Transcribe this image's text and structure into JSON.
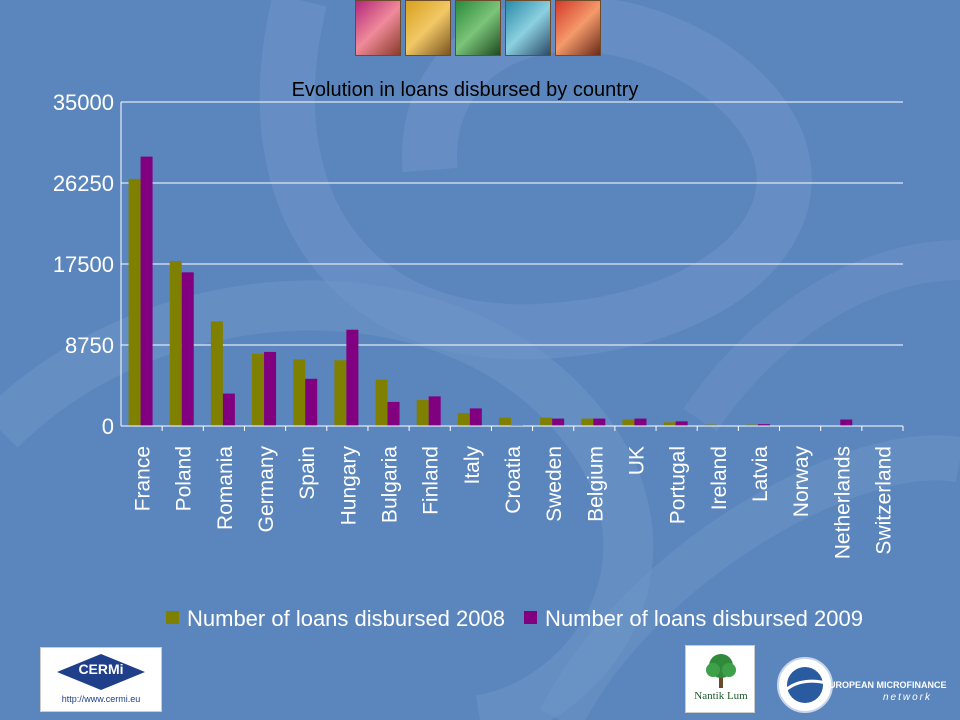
{
  "chart_data": {
    "type": "bar",
    "title": "Evolution in loans disbursed by country",
    "xlabel": "",
    "ylabel": "",
    "ylim": [
      0,
      35000
    ],
    "yticks": [
      "35000",
      "26250",
      "17500",
      "8750",
      "0"
    ],
    "yticks_values": [
      35000,
      26250,
      17500,
      8750,
      0
    ],
    "grid": true,
    "legend_position": "bottom",
    "categories": [
      "France",
      "Poland",
      "Romania",
      "Germany",
      "Spain",
      "Hungary",
      "Bulgaria",
      "Finland",
      "Italy",
      "Croatia",
      "Sweden",
      "Belgium",
      "UK",
      "Portugal",
      "Ireland",
      "Latvia",
      "Norway",
      "Netherlands",
      "Switzerland"
    ],
    "series": [
      {
        "name": "Number of loans disbursed 2008",
        "color": "#808000",
        "values": [
          26700,
          17800,
          11300,
          7800,
          7200,
          7100,
          5000,
          2800,
          1400,
          900,
          900,
          800,
          700,
          400,
          150,
          150,
          0,
          0,
          0
        ]
      },
      {
        "name": "Number of loans disbursed 2009",
        "color": "#800080",
        "values": [
          29100,
          16600,
          3500,
          8000,
          5100,
          10400,
          2600,
          3200,
          1900,
          100,
          800,
          800,
          800,
          500,
          50,
          200,
          0,
          700,
          0
        ]
      }
    ]
  },
  "logos": {
    "cermi_name": "CERMi",
    "cermi_url": "http://www.cermi.eu",
    "nantik_name": "Nantik Lum",
    "emn_line1": "EUROPEAN MICROFINANCE",
    "emn_line2": "network"
  },
  "colors": {
    "background": "#5b86bd",
    "grid": "#ffffff",
    "text": "#ffffff",
    "title": "#000000"
  }
}
